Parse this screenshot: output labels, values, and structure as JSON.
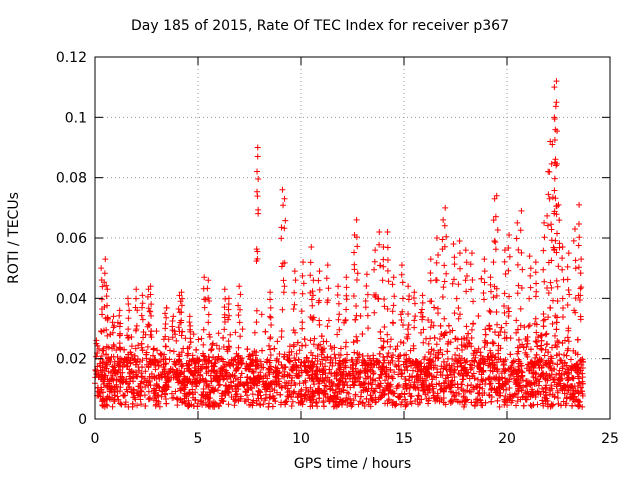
{
  "chart_data": {
    "type": "scatter",
    "title": "Day 185 of 2015, Rate Of TEC Index for receiver p367",
    "xlabel": "GPS time / hours",
    "ylabel": "ROTI / TECUs",
    "xlim": [
      0,
      25
    ],
    "ylim": [
      0,
      0.12
    ],
    "xticks": [
      0,
      5,
      10,
      15,
      20,
      25
    ],
    "yticks": [
      0,
      0.02,
      0.04,
      0.06,
      0.08,
      0.1,
      0.12
    ],
    "grid": true,
    "marker": "+",
    "color": "#ff0000",
    "data_extent_hours": [
      0,
      23.7
    ],
    "note_dense_band": "bulk of points between ~0.003 and ~0.03 TECU across all hours",
    "x": [
      0.3,
      0.5,
      0.6,
      0.9,
      1.2,
      1.6,
      2.0,
      2.3,
      2.6,
      2.7,
      3.4,
      3.8,
      4.1,
      4.2,
      4.6,
      5.3,
      5.5,
      6.3,
      6.5,
      7.0,
      7.9,
      7.9,
      8.5,
      9.1,
      9.2,
      9.7,
      10.1,
      10.5,
      10.6,
      10.9,
      11.3,
      11.8,
      12.2,
      12.6,
      12.7,
      13.2,
      13.6,
      13.8,
      14.0,
      14.2,
      14.5,
      14.9,
      15.2,
      15.5,
      15.9,
      16.3,
      16.6,
      16.9,
      17.0,
      17.4,
      17.7,
      18.0,
      18.3,
      18.9,
      19.2,
      19.4,
      19.5,
      19.9,
      20.1,
      20.5,
      20.7,
      21.1,
      21.4,
      21.8,
      22.0,
      22.1,
      22.2,
      22.3,
      22.3,
      22.4,
      22.4,
      22.5,
      22.7,
      23.0,
      23.3,
      23.5,
      23.6
    ],
    "y": [
      0.05,
      0.053,
      0.043,
      0.034,
      0.036,
      0.04,
      0.043,
      0.041,
      0.043,
      0.044,
      0.035,
      0.034,
      0.041,
      0.042,
      0.034,
      0.047,
      0.046,
      0.043,
      0.04,
      0.044,
      0.087,
      0.09,
      0.042,
      0.076,
      0.073,
      0.049,
      0.052,
      0.057,
      0.046,
      0.049,
      0.051,
      0.044,
      0.047,
      0.061,
      0.066,
      0.048,
      0.056,
      0.062,
      0.057,
      0.062,
      0.047,
      0.051,
      0.044,
      0.042,
      0.041,
      0.053,
      0.06,
      0.066,
      0.07,
      0.058,
      0.059,
      0.056,
      0.055,
      0.053,
      0.047,
      0.073,
      0.074,
      0.056,
      0.061,
      0.065,
      0.069,
      0.054,
      0.052,
      0.065,
      0.082,
      0.092,
      0.091,
      0.1,
      0.11,
      0.112,
      0.105,
      0.071,
      0.057,
      0.055,
      0.063,
      0.071,
      0.053
    ]
  }
}
